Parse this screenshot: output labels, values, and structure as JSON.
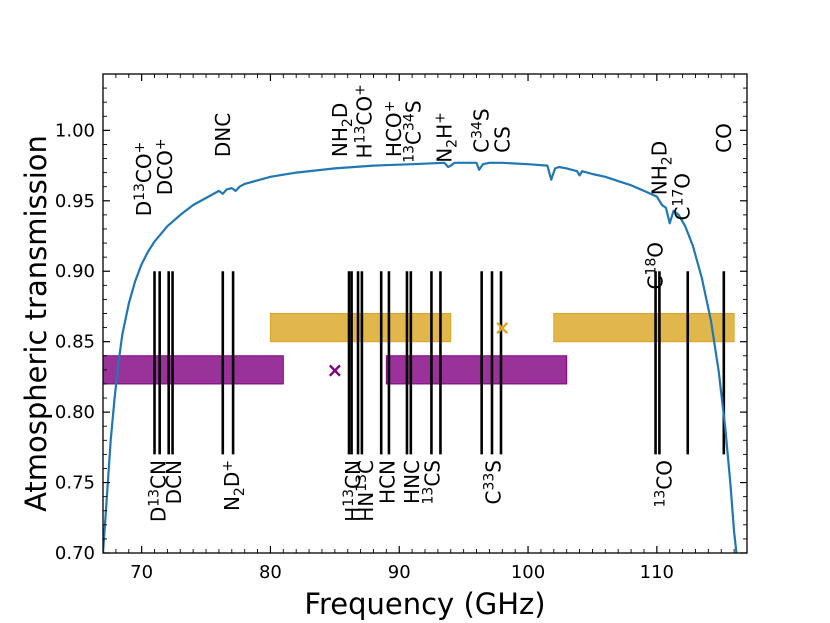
{
  "chart_data": {
    "type": "line",
    "xlabel": "Frequency (GHz)",
    "ylabel": "Atmospheric transmission",
    "xlim": [
      67,
      117
    ],
    "ylim": [
      0.7,
      1.04
    ],
    "x_ticks": [
      70,
      80,
      90,
      100,
      110
    ],
    "x_tick_labels": [
      "70",
      "80",
      "90",
      "100",
      "110"
    ],
    "y_ticks": [
      0.7,
      0.75,
      0.8,
      0.85,
      0.9,
      0.95,
      1.0
    ],
    "y_tick_labels": [
      "0.70",
      "0.75",
      "0.80",
      "0.85",
      "0.90",
      "0.95",
      "1.00"
    ],
    "grid": false,
    "colors": {
      "transmission": "#1f77b4",
      "band_gold": "#daa520",
      "band_purple": "#800080",
      "line_marker": "#000000"
    },
    "transmission_curve": {
      "name": "Atmospheric transmission",
      "x": [
        67.0,
        67.3,
        67.6,
        67.9,
        68.2,
        68.5,
        69.0,
        69.5,
        70.0,
        70.5,
        71.0,
        72.0,
        73.0,
        74.0,
        75.0,
        76.0,
        76.3,
        76.6,
        77.0,
        77.3,
        77.6,
        78.0,
        80.0,
        82.0,
        85.0,
        88.0,
        91.0,
        93.5,
        93.8,
        94.0,
        94.3,
        95.0,
        96.0,
        96.2,
        96.5,
        97.0,
        98.0,
        100.0,
        101.5,
        101.8,
        102.1,
        102.4,
        103.0,
        103.8,
        104.0,
        104.2,
        105.0,
        106.0,
        107.0,
        108.0,
        109.0,
        110.0,
        110.4,
        110.7,
        111.0,
        111.3,
        111.7,
        112.2,
        112.8,
        113.5,
        114.2,
        114.8,
        115.3,
        115.7,
        116.0,
        116.3
      ],
      "values": [
        0.7,
        0.74,
        0.78,
        0.81,
        0.835,
        0.855,
        0.877,
        0.893,
        0.905,
        0.914,
        0.921,
        0.932,
        0.94,
        0.947,
        0.952,
        0.957,
        0.955,
        0.958,
        0.959,
        0.957,
        0.96,
        0.962,
        0.967,
        0.97,
        0.973,
        0.975,
        0.976,
        0.977,
        0.974,
        0.975,
        0.977,
        0.977,
        0.977,
        0.972,
        0.976,
        0.977,
        0.977,
        0.976,
        0.975,
        0.965,
        0.973,
        0.974,
        0.973,
        0.971,
        0.968,
        0.971,
        0.969,
        0.967,
        0.964,
        0.961,
        0.957,
        0.953,
        0.947,
        0.945,
        0.934,
        0.943,
        0.94,
        0.932,
        0.918,
        0.895,
        0.865,
        0.829,
        0.79,
        0.75,
        0.715,
        0.69
      ]
    },
    "bands": [
      {
        "name": "gold-band-1",
        "color": "gold",
        "x_range": [
          80.0,
          94.0
        ],
        "y_range": [
          0.85,
          0.87
        ]
      },
      {
        "name": "gold-band-2",
        "color": "gold",
        "x_range": [
          102.0,
          116.0
        ],
        "y_range": [
          0.85,
          0.87
        ]
      },
      {
        "name": "purple-band-1",
        "color": "purple",
        "x_range": [
          67.0,
          81.0
        ],
        "y_range": [
          0.82,
          0.84
        ]
      },
      {
        "name": "purple-band-2",
        "color": "purple",
        "x_range": [
          89.0,
          103.0
        ],
        "y_range": [
          0.82,
          0.84
        ]
      }
    ],
    "markers": [
      {
        "name": "gold-cross-marker",
        "symbol": "×",
        "color": "gold",
        "x": 98.0,
        "y": 0.86
      },
      {
        "name": "purple-cross-marker",
        "symbol": "×",
        "color": "purple",
        "x": 85.0,
        "y": 0.83
      }
    ],
    "lines_y_range": [
      0.77,
      0.9
    ],
    "lines_x": [
      71.0,
      71.4,
      72.1,
      72.4,
      76.3,
      77.1,
      86.1,
      86.3,
      86.8,
      87.1,
      88.6,
      89.2,
      90.6,
      90.9,
      92.5,
      93.2,
      96.4,
      97.2,
      97.9,
      109.9,
      110.2,
      112.4,
      115.2
    ],
    "top_labels": [
      {
        "name": "label-d13co-plus",
        "parts": [
          [
            "D",
            "n"
          ],
          [
            "13",
            "sup"
          ],
          [
            "CO",
            "n"
          ],
          [
            "+",
            "sup"
          ]
        ],
        "x": 70.2,
        "y": 0.939
      },
      {
        "name": "label-dco-plus",
        "parts": [
          [
            "DCO",
            "n"
          ],
          [
            "+",
            "sup"
          ]
        ],
        "x": 71.8,
        "y": 0.954
      },
      {
        "name": "label-dnc",
        "parts": [
          [
            "DNC",
            "n"
          ]
        ],
        "x": 76.3,
        "y": 0.981
      },
      {
        "name": "label-nh2d-top",
        "parts": [
          [
            "NH",
            "n"
          ],
          [
            "2",
            "sub"
          ],
          [
            "D",
            "n"
          ]
        ],
        "x": 85.4,
        "y": 0.981
      },
      {
        "name": "label-h13co-plus",
        "parts": [
          [
            "H",
            "n"
          ],
          [
            "13",
            "sup"
          ],
          [
            "CO",
            "n"
          ],
          [
            "+",
            "sup"
          ]
        ],
        "x": 87.3,
        "y": 0.98
      },
      {
        "name": "label-hco-plus",
        "parts": [
          [
            "HCO",
            "n"
          ],
          [
            "+",
            "sup"
          ]
        ],
        "x": 89.6,
        "y": 0.981
      },
      {
        "name": "label-13c34s",
        "parts": [
          [
            "13",
            "sup"
          ],
          [
            "C",
            "n"
          ],
          [
            "34",
            "sup"
          ],
          [
            "S",
            "n"
          ]
        ],
        "x": 91.1,
        "y": 0.977
      },
      {
        "name": "label-n2h-plus",
        "parts": [
          [
            "N",
            "n"
          ],
          [
            "2",
            "sub"
          ],
          [
            "H",
            "n"
          ],
          [
            "+",
            "sup"
          ]
        ],
        "x": 93.5,
        "y": 0.977
      },
      {
        "name": "label-c34s",
        "parts": [
          [
            "C",
            "n"
          ],
          [
            "34",
            "sup"
          ],
          [
            "S",
            "n"
          ]
        ],
        "x": 96.4,
        "y": 0.984
      },
      {
        "name": "label-cs",
        "parts": [
          [
            "CS",
            "n"
          ]
        ],
        "x": 98.0,
        "y": 0.984
      },
      {
        "name": "label-nh2d-right",
        "parts": [
          [
            "NH",
            "n"
          ],
          [
            "2",
            "sub"
          ],
          [
            "D",
            "n"
          ]
        ],
        "x": 110.2,
        "y": 0.954
      },
      {
        "name": "label-c17o",
        "parts": [
          [
            "C",
            "n"
          ],
          [
            "17",
            "sup"
          ],
          [
            "O",
            "n"
          ]
        ],
        "x": 112.0,
        "y": 0.936
      },
      {
        "name": "label-co",
        "parts": [
          [
            "CO",
            "n"
          ]
        ],
        "x": 115.2,
        "y": 0.984
      },
      {
        "name": "label-c18o",
        "parts": [
          [
            "C",
            "n"
          ],
          [
            "18",
            "sup"
          ],
          [
            "O",
            "n"
          ]
        ],
        "x": 109.9,
        "y": 0.887
      }
    ],
    "bottom_labels": [
      {
        "name": "label-d13cn",
        "parts": [
          [
            "D",
            "n"
          ],
          [
            "13",
            "sup"
          ],
          [
            "CN",
            "n"
          ]
        ],
        "x": 71.3,
        "y": 0.766
      },
      {
        "name": "label-dcn",
        "parts": [
          [
            "DCN",
            "n"
          ]
        ],
        "x": 72.5,
        "y": 0.766
      },
      {
        "name": "label-n2d-plus",
        "parts": [
          [
            "N",
            "n"
          ],
          [
            "2",
            "sub"
          ],
          [
            "D",
            "n"
          ],
          [
            "+",
            "sup"
          ]
        ],
        "x": 77.0,
        "y": 0.766
      },
      {
        "name": "label-h13cn",
        "parts": [
          [
            "H",
            "n"
          ],
          [
            "13",
            "sup"
          ],
          [
            "CN",
            "n"
          ]
        ],
        "x": 86.4,
        "y": 0.766
      },
      {
        "name": "label-hn13c",
        "parts": [
          [
            "HN",
            "n"
          ],
          [
            "13",
            "sup"
          ],
          [
            "C",
            "n"
          ]
        ],
        "x": 87.4,
        "y": 0.766
      },
      {
        "name": "label-hcn",
        "parts": [
          [
            "HCN",
            "n"
          ]
        ],
        "x": 89.1,
        "y": 0.766
      },
      {
        "name": "label-hnc",
        "parts": [
          [
            "HNC",
            "n"
          ]
        ],
        "x": 91.0,
        "y": 0.766
      },
      {
        "name": "label-13cs",
        "parts": [
          [
            "13",
            "sup"
          ],
          [
            "CS",
            "n"
          ]
        ],
        "x": 92.6,
        "y": 0.766
      },
      {
        "name": "label-c33s",
        "parts": [
          [
            "C",
            "n"
          ],
          [
            "33",
            "sup"
          ],
          [
            "S",
            "n"
          ]
        ],
        "x": 97.3,
        "y": 0.766
      },
      {
        "name": "label-13co",
        "parts": [
          [
            "13",
            "sup"
          ],
          [
            "CO",
            "n"
          ]
        ],
        "x": 110.6,
        "y": 0.766
      }
    ]
  }
}
